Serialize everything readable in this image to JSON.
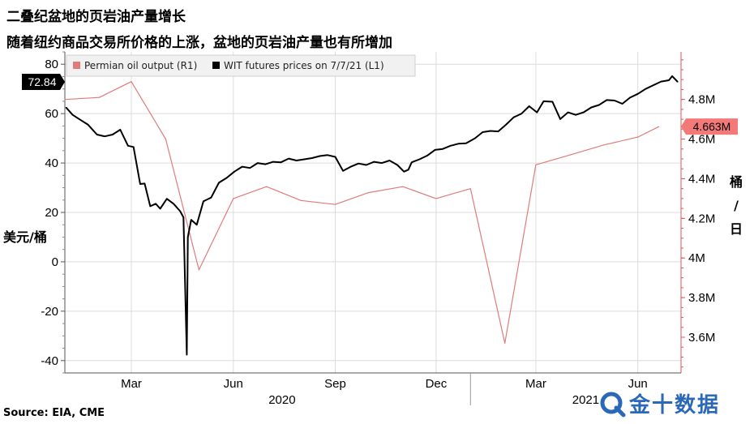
{
  "title": "二叠纪盆地的页岩油产量增长",
  "subtitle": "随着纽约商品交易所价格的上涨，盆地的页岩油产量也有所增加",
  "source": "Source: EIA, CME",
  "logo": {
    "text": "金十数据",
    "icon": "jin10-logo-icon"
  },
  "colors": {
    "oil_output": "#e07b7b",
    "price": "#000000",
    "grid": "#dcdcdc",
    "right_axis": "#e05555"
  },
  "chart_data": {
    "type": "line",
    "title": "二叠纪盆地的页岩油产量增长",
    "subtitle": "随着纽约商品交易所价格的上涨，盆地的页岩油产量也有所增加",
    "x_range": [
      "2020-01-01",
      "2021-07-10"
    ],
    "x_ticks": [
      {
        "date": "2020-03-01",
        "label": "Mar"
      },
      {
        "date": "2020-06-01",
        "label": "Jun"
      },
      {
        "date": "2020-09-01",
        "label": "Sep"
      },
      {
        "date": "2020-12-01",
        "label": "Dec"
      },
      {
        "date": "2021-03-01",
        "label": "Mar"
      },
      {
        "date": "2021-06-01",
        "label": "Jun"
      }
    ],
    "year_labels": [
      {
        "date": "2020-07-15",
        "label": "2020"
      },
      {
        "date": "2021-04-15",
        "label": "2021"
      }
    ],
    "year_separator_date": "2021-01-01",
    "left_axis": {
      "label": "美元/桶",
      "range": [
        -45,
        85
      ],
      "ticks": [
        -40,
        -20,
        0,
        20,
        40,
        60,
        80
      ]
    },
    "right_axis": {
      "label": [
        "桶",
        "/",
        "日"
      ],
      "range": [
        3.42,
        5.04
      ],
      "ticks": [
        3.6,
        3.8,
        4.0,
        4.2,
        4.4,
        4.6,
        4.8
      ],
      "tick_labels": [
        "3.6M",
        "3.8M",
        "4M",
        "4.2M",
        "4.4M",
        "4.6M",
        "4.8M"
      ]
    },
    "grid": true,
    "legend": {
      "position": "top-left",
      "entries": [
        "Permian oil output (R1)",
        "WIT futures prices on 7/7/21 (L1)"
      ]
    },
    "series": [
      {
        "name": "Permian oil output (R1)",
        "axis": "right",
        "unit": "M barrels/day",
        "points": [
          [
            "2020-01-01",
            4.8
          ],
          [
            "2020-02-01",
            4.81
          ],
          [
            "2020-03-01",
            4.89
          ],
          [
            "2020-04-01",
            4.6
          ],
          [
            "2020-05-01",
            3.94
          ],
          [
            "2020-06-01",
            4.3
          ],
          [
            "2020-07-01",
            4.36
          ],
          [
            "2020-08-01",
            4.29
          ],
          [
            "2020-09-01",
            4.27
          ],
          [
            "2020-10-01",
            4.33
          ],
          [
            "2020-11-01",
            4.36
          ],
          [
            "2020-12-01",
            4.3
          ],
          [
            "2021-01-01",
            4.35
          ],
          [
            "2021-02-01",
            3.57
          ],
          [
            "2021-03-01",
            4.47
          ],
          [
            "2021-04-01",
            4.52
          ],
          [
            "2021-05-01",
            4.57
          ],
          [
            "2021-06-01",
            4.61
          ],
          [
            "2021-06-20",
            4.663
          ]
        ]
      },
      {
        "name": "WIT futures prices on 7/7/21 (L1)",
        "axis": "left",
        "unit": "USD/barrel",
        "points": [
          [
            "2020-01-02",
            62.5
          ],
          [
            "2020-01-08",
            59.5
          ],
          [
            "2020-01-15",
            57.5
          ],
          [
            "2020-01-22",
            55.5
          ],
          [
            "2020-01-30",
            51.5
          ],
          [
            "2020-02-06",
            50.8
          ],
          [
            "2020-02-13",
            51.5
          ],
          [
            "2020-02-20",
            53.5
          ],
          [
            "2020-02-27",
            47.0
          ],
          [
            "2020-03-03",
            46.5
          ],
          [
            "2020-03-09",
            31.5
          ],
          [
            "2020-03-13",
            31.7
          ],
          [
            "2020-03-18",
            22.5
          ],
          [
            "2020-03-23",
            23.5
          ],
          [
            "2020-03-27",
            21.5
          ],
          [
            "2020-04-02",
            25.5
          ],
          [
            "2020-04-08",
            23.5
          ],
          [
            "2020-04-14",
            20.5
          ],
          [
            "2020-04-17",
            18.0
          ],
          [
            "2020-04-20",
            -37.6
          ],
          [
            "2020-04-21",
            10.0
          ],
          [
            "2020-04-24",
            17.0
          ],
          [
            "2020-04-29",
            15.0
          ],
          [
            "2020-05-05",
            24.5
          ],
          [
            "2020-05-12",
            26.0
          ],
          [
            "2020-05-19",
            32.0
          ],
          [
            "2020-05-26",
            34.0
          ],
          [
            "2020-06-02",
            36.5
          ],
          [
            "2020-06-09",
            38.5
          ],
          [
            "2020-06-16",
            38.0
          ],
          [
            "2020-06-23",
            40.0
          ],
          [
            "2020-06-30",
            39.5
          ],
          [
            "2020-07-07",
            40.5
          ],
          [
            "2020-07-14",
            40.3
          ],
          [
            "2020-07-21",
            41.8
          ],
          [
            "2020-07-28",
            41.0
          ],
          [
            "2020-08-04",
            41.5
          ],
          [
            "2020-08-11",
            42.0
          ],
          [
            "2020-08-18",
            42.8
          ],
          [
            "2020-08-25",
            43.2
          ],
          [
            "2020-09-01",
            42.5
          ],
          [
            "2020-09-08",
            36.8
          ],
          [
            "2020-09-15",
            38.5
          ],
          [
            "2020-09-22",
            39.8
          ],
          [
            "2020-09-29",
            39.2
          ],
          [
            "2020-10-06",
            40.5
          ],
          [
            "2020-10-13",
            40.0
          ],
          [
            "2020-10-20",
            41.0
          ],
          [
            "2020-10-27",
            39.2
          ],
          [
            "2020-11-02",
            36.5
          ],
          [
            "2020-11-06",
            37.3
          ],
          [
            "2020-11-09",
            40.3
          ],
          [
            "2020-11-16",
            41.5
          ],
          [
            "2020-11-23",
            43.0
          ],
          [
            "2020-11-30",
            45.3
          ],
          [
            "2020-12-07",
            45.7
          ],
          [
            "2020-12-14",
            47.0
          ],
          [
            "2020-12-21",
            47.8
          ],
          [
            "2020-12-28",
            48.0
          ],
          [
            "2021-01-05",
            50.0
          ],
          [
            "2021-01-12",
            52.5
          ],
          [
            "2021-01-19",
            53.0
          ],
          [
            "2021-01-26",
            52.8
          ],
          [
            "2021-02-02",
            55.5
          ],
          [
            "2021-02-09",
            58.5
          ],
          [
            "2021-02-16",
            60.0
          ],
          [
            "2021-02-23",
            63.0
          ],
          [
            "2021-03-02",
            60.5
          ],
          [
            "2021-03-08",
            65.0
          ],
          [
            "2021-03-16",
            64.8
          ],
          [
            "2021-03-23",
            57.8
          ],
          [
            "2021-03-30",
            60.5
          ],
          [
            "2021-04-06",
            59.5
          ],
          [
            "2021-04-13",
            60.5
          ],
          [
            "2021-04-20",
            62.5
          ],
          [
            "2021-04-27",
            63.5
          ],
          [
            "2021-05-04",
            65.5
          ],
          [
            "2021-05-11",
            65.3
          ],
          [
            "2021-05-18",
            64.0
          ],
          [
            "2021-05-25",
            66.5
          ],
          [
            "2021-06-01",
            68.0
          ],
          [
            "2021-06-08",
            70.0
          ],
          [
            "2021-06-15",
            71.5
          ],
          [
            "2021-06-22",
            73.0
          ],
          [
            "2021-06-29",
            73.5
          ],
          [
            "2021-07-02",
            75.2
          ],
          [
            "2021-07-07",
            72.84
          ]
        ]
      }
    ],
    "callouts": [
      {
        "axis": "left",
        "value": 72.84,
        "label": "72.84"
      },
      {
        "axis": "right",
        "value": 4.663,
        "label": "4.663M"
      }
    ]
  }
}
